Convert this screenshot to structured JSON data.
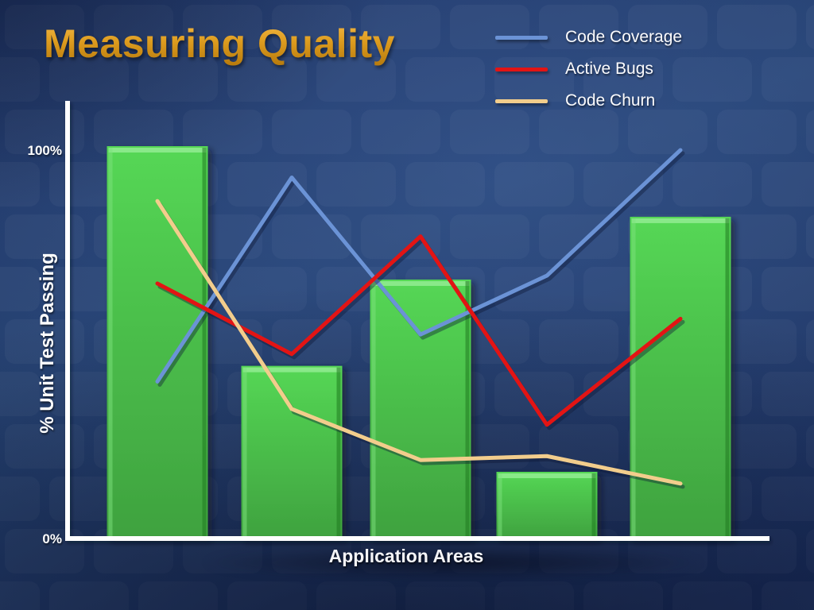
{
  "slide": {
    "title": "Measuring Quality"
  },
  "colors": {
    "background_navy": "#223c6b",
    "title_gold": "#dd9c1f",
    "axis_white": "#ffffff",
    "bar_green_top": "#55d755",
    "bar_green_bottom": "#3fa23f",
    "code_coverage_blue": "#6b93d6",
    "active_bugs_red": "#e31414",
    "code_churn_tan": "#f2cd8c"
  },
  "legend": {
    "items": [
      {
        "label": "Code Coverage",
        "color": "#6b93d6"
      },
      {
        "label": "Active Bugs",
        "color": "#e31414"
      },
      {
        "label": "Code Churn",
        "color": "#f2cd8c"
      }
    ]
  },
  "axes": {
    "y_tick_top": "100%",
    "y_tick_bottom": "0%",
    "y_title": "% Unit Test Passing",
    "x_title": "Application Areas"
  },
  "chart_data": {
    "type": "combo",
    "categories": [
      "",
      "",
      "",
      "",
      ""
    ],
    "bar_series": {
      "name": "% Unit Test Passing",
      "type": "bar",
      "color_top": "#55d755",
      "color_bottom": "#3fa23f",
      "values": [
        100,
        44,
        66,
        17,
        82
      ]
    },
    "line_series": [
      {
        "name": "Code Coverage",
        "type": "line",
        "color": "#6b93d6",
        "values": [
          40,
          92,
          52,
          67,
          99
        ]
      },
      {
        "name": "Active Bugs",
        "type": "line",
        "color": "#e31414",
        "values": [
          65,
          47,
          77,
          29,
          56
        ]
      },
      {
        "name": "Code Churn",
        "type": "line",
        "color": "#f2cd8c",
        "values": [
          86,
          33,
          20,
          21,
          14
        ]
      }
    ],
    "title": "Measuring Quality",
    "xlabel": "Application Areas",
    "ylabel": "% Unit Test Passing",
    "ylim": [
      0,
      100
    ],
    "yticks": [
      "0%",
      "100%"
    ],
    "grid": false,
    "legend_position": "top-right"
  }
}
